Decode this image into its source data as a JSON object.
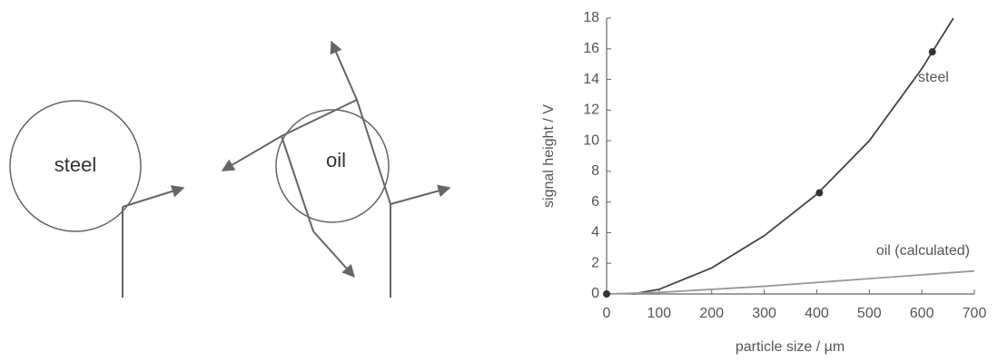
{
  "diagram": {
    "particles": [
      {
        "label": "steel"
      },
      {
        "label": "oil"
      }
    ]
  },
  "chart_data": {
    "type": "line",
    "xlabel": "particle size / µm",
    "ylabel": "signal height / V",
    "xlim": [
      0,
      700
    ],
    "ylim": [
      0,
      18
    ],
    "xticks": [
      0,
      100,
      200,
      300,
      400,
      500,
      600,
      700
    ],
    "yticks": [
      0,
      2,
      4,
      6,
      8,
      10,
      12,
      14,
      16,
      18
    ],
    "series": [
      {
        "name": "steel",
        "color": "#444444",
        "x": [
          50,
          100,
          200,
          300,
          400,
          500,
          600,
          660
        ],
        "values": [
          0,
          0.3,
          1.7,
          3.8,
          6.5,
          10.0,
          14.7,
          18
        ]
      },
      {
        "name": "oil (calculated)",
        "color": "#999999",
        "x": [
          0,
          100,
          200,
          300,
          400,
          500,
          600,
          700
        ],
        "values": [
          0,
          0.1,
          0.3,
          0.5,
          0.75,
          1.0,
          1.25,
          1.5
        ]
      }
    ],
    "points": {
      "color": "#333333",
      "x": [
        0,
        405,
        620
      ],
      "values": [
        0,
        6.6,
        15.8
      ]
    }
  }
}
